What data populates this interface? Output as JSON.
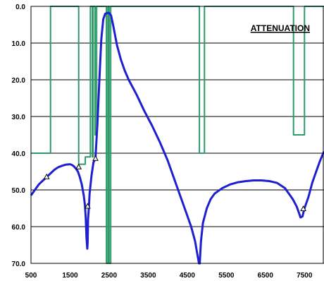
{
  "chart_data": {
    "type": "line",
    "title": "ATTENUATION",
    "xlabel": "",
    "ylabel": "",
    "xlim": [
      500,
      8000
    ],
    "ylim": [
      0,
      70
    ],
    "y_inverted": true,
    "grid": "horizontal",
    "legend": "none",
    "x_ticks": [
      500,
      1500,
      2500,
      3500,
      4500,
      5500,
      6500,
      7500
    ],
    "x_tick_labels": [
      "500",
      "1500",
      "2500",
      "3500",
      "4500",
      "5500",
      "6500",
      "7500"
    ],
    "y_ticks": [
      0,
      10,
      20,
      30,
      40,
      50,
      60,
      70
    ],
    "y_tick_labels": [
      "0.0",
      "10.0",
      "20.0",
      "30.0",
      "40.0",
      "50.0",
      "60.0",
      "70.0"
    ],
    "series": [
      {
        "color": "#1f1fd0",
        "x": [
          500,
          600,
          700,
          800,
          900,
          1000,
          1100,
          1200,
          1300,
          1400,
          1500,
          1550,
          1600,
          1650,
          1700,
          1750,
          1800,
          1850,
          1880,
          1900,
          1920,
          1940,
          1950,
          1960,
          1980,
          2000,
          2050,
          2100,
          2150,
          2200,
          2250,
          2300,
          2350,
          2400,
          2450,
          2500,
          2550,
          2600,
          2700,
          2800,
          2900,
          3000,
          3200,
          3400,
          3600,
          3800,
          4000,
          4200,
          4400,
          4600,
          4700,
          4750,
          4800,
          4820,
          4850,
          4900,
          5000,
          5100,
          5200,
          5400,
          5600,
          5800,
          6000,
          6200,
          6400,
          6600,
          6800,
          7000,
          7200,
          7300,
          7400,
          7450,
          7500,
          7600,
          7700,
          7800,
          7900,
          8000
        ],
        "y": [
          51.5,
          50,
          48.5,
          47.5,
          46.5,
          45.5,
          44.5,
          43.8,
          43.4,
          43.1,
          43.0,
          43.2,
          43.6,
          44.2,
          45.0,
          46.5,
          48.5,
          51.5,
          54,
          57.5,
          63,
          66,
          64.5,
          58,
          55,
          51,
          46,
          42.5,
          41.5,
          32,
          20,
          9,
          3.5,
          2,
          1.8,
          1.8,
          2.5,
          5,
          10.5,
          14.5,
          17.5,
          20,
          24,
          28.5,
          32.5,
          37,
          42,
          48,
          54,
          60,
          64,
          67,
          70,
          70,
          64,
          59,
          55,
          52.5,
          51,
          49.5,
          48.5,
          47.9,
          47.6,
          47.4,
          47.4,
          47.6,
          48.1,
          49.5,
          52.5,
          54.5,
          57.5,
          57.2,
          55,
          52,
          48,
          45,
          42,
          39.5
        ]
      },
      {
        "color": "#2e9a6a",
        "x": [
          500,
          1000,
          1000,
          1720,
          1720,
          1890,
          1890,
          2020,
          2020,
          2070,
          2070,
          2090,
          2090,
          2140,
          2140,
          2180,
          2180,
          2430,
          2430,
          2470,
          2470,
          2500,
          2500,
          2540,
          2540,
          4810,
          4810,
          4940,
          4940,
          7220,
          7220,
          7500,
          7500,
          8000
        ],
        "y": [
          40,
          40,
          0,
          0,
          43,
          43,
          41,
          41,
          0,
          0,
          41,
          41,
          0,
          0,
          35,
          35,
          0,
          0,
          70,
          70,
          0,
          0,
          70,
          70,
          0,
          0,
          40,
          40,
          0,
          0,
          35,
          35,
          0,
          0
        ]
      }
    ],
    "markers": {
      "shape": "triangle",
      "x": [
        900,
        1720,
        1950,
        2150,
        7470
      ],
      "y": [
        46.5,
        43.8,
        54.5,
        41.5,
        55.2
      ]
    }
  }
}
